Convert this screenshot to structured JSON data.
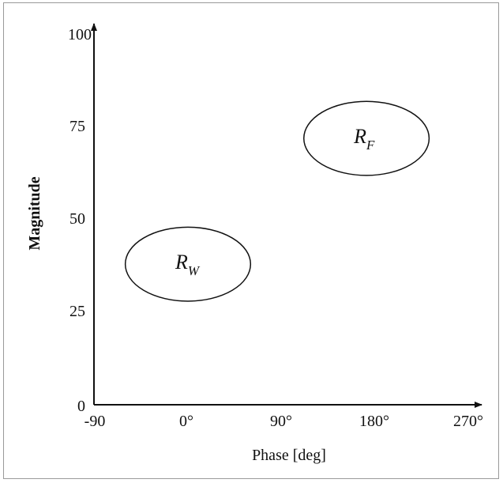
{
  "chart_data": {
    "type": "scatter",
    "xlabel": "Phase [deg]",
    "ylabel": "Magnitude",
    "x_ticks": [
      "-90",
      "0°",
      "90°",
      "180°",
      "270°"
    ],
    "y_ticks": [
      "0",
      "25",
      "50",
      "75",
      "100"
    ],
    "xlim": [
      -90,
      270
    ],
    "ylim": [
      0,
      100
    ],
    "regions": [
      {
        "label": "R",
        "subscript": "W",
        "center": [
          0,
          38
        ],
        "half_width": 60,
        "half_height": 10
      },
      {
        "label": "R",
        "subscript": "F",
        "center": [
          171,
          72
        ],
        "half_width": 60,
        "half_height": 10
      }
    ]
  }
}
